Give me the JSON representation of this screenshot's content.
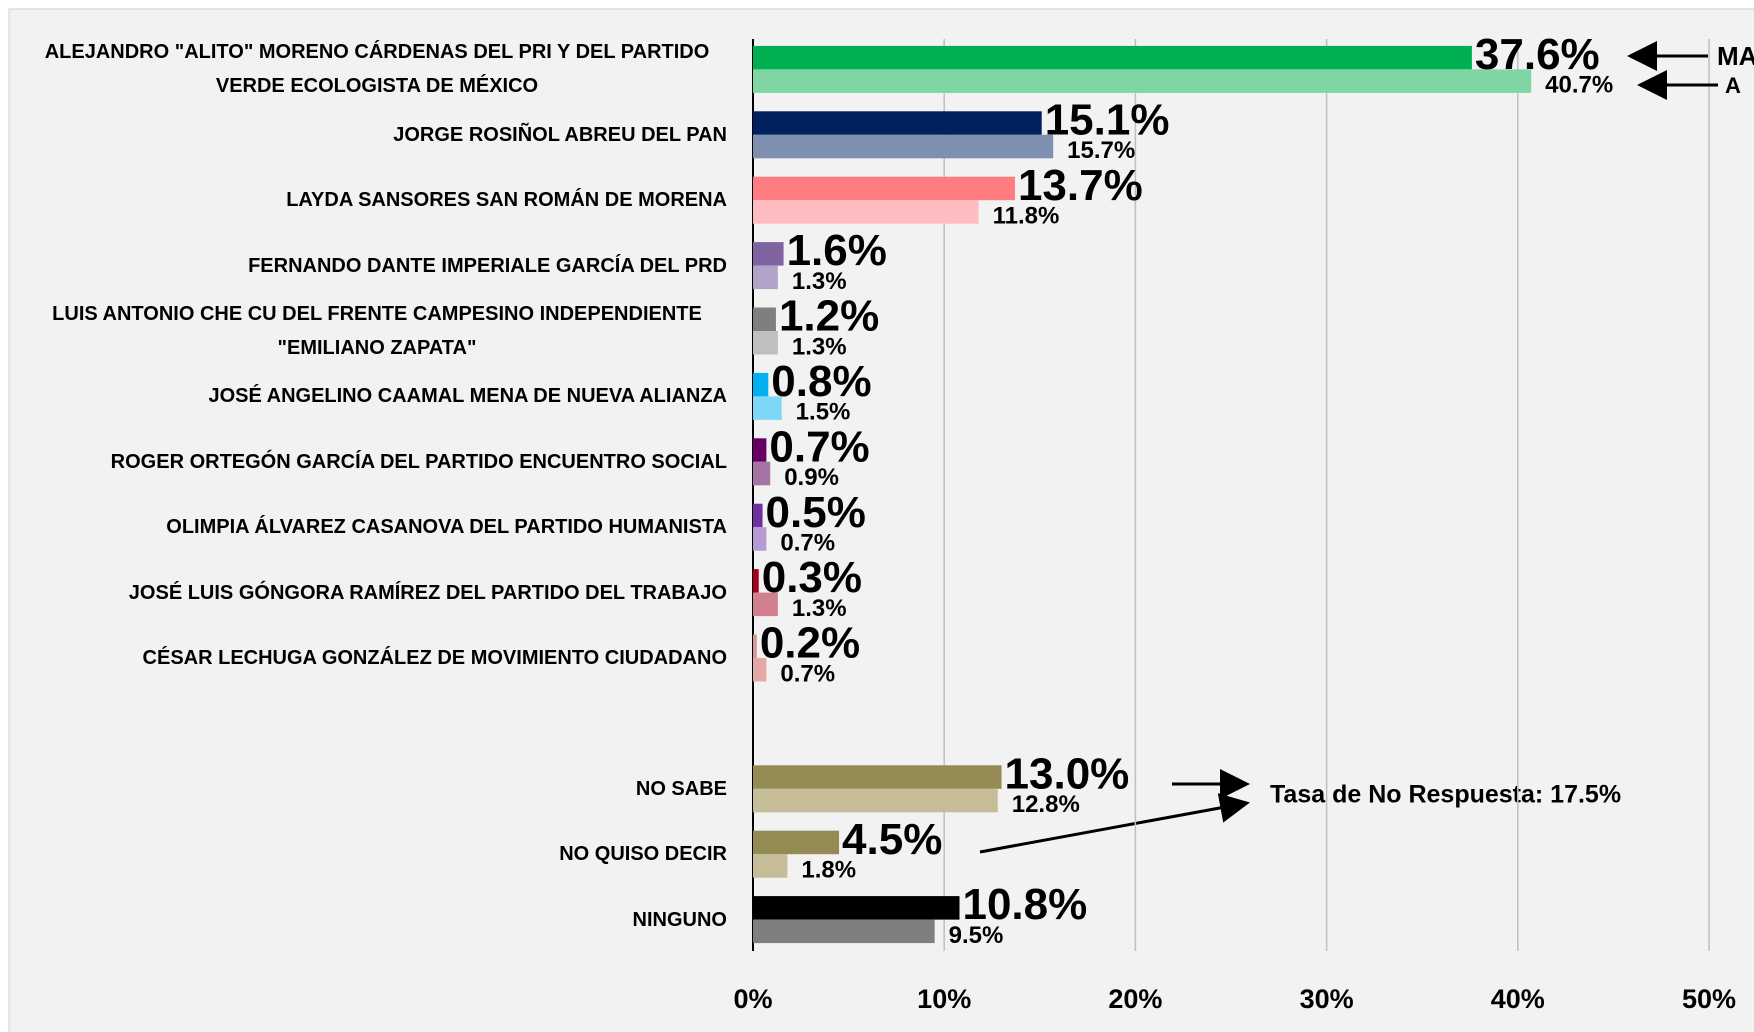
{
  "chart_data": {
    "type": "bar",
    "orientation": "horizontal",
    "categories": [
      "ALEJANDRO \"ALITO\" MORENO CÁRDENAS DEL PRI Y DEL PARTIDO VERDE ECOLOGISTA DE MÉXICO",
      "JORGE ROSIÑOL ABREU DEL PAN",
      "LAYDA SANSORES SAN ROMÁN DE MORENA",
      "FERNANDO DANTE IMPERIALE GARCÍA DEL PRD",
      "LUIS ANTONIO CHE CU DEL FRENTE CAMPESINO INDEPENDIENTE \"EMILIANO ZAPATA\"",
      "JOSÉ ANGELINO CAAMAL MENA DE NUEVA ALIANZA",
      "ROGER ORTEGÓN GARCÍA DEL PARTIDO ENCUENTRO SOCIAL",
      "OLIMPIA ÁLVAREZ CASANOVA DEL PARTIDO HUMANISTA",
      "JOSÉ LUIS GÓNGORA RAMÍREZ DEL PARTIDO DEL TRABAJO",
      "CÉSAR LECHUGA GONZÁLEZ DE MOVIMIENTO CIUDADANO",
      null,
      "NO SABE",
      "NO QUISO DECIR",
      "NINGUNO"
    ],
    "series": [
      {
        "name": "MA",
        "colors": [
          "#00b050",
          "#002060",
          "#ff7c80",
          "#8064a2",
          "#7f7f7f",
          "#00b0f0",
          "#660066",
          "#7030a0",
          "#a50021",
          "#d99694",
          null,
          "#948a54",
          "#948a54",
          "#000000"
        ],
        "values": [
          37.6,
          15.1,
          13.7,
          1.6,
          1.2,
          0.8,
          0.7,
          0.5,
          0.3,
          0.2,
          null,
          13,
          4.5,
          10.8
        ],
        "value_labels": [
          "37.6%",
          "15.1%",
          "13.7%",
          "1.6%",
          "1.2%",
          "0.8%",
          "0.7%",
          "0.5%",
          "0.3%",
          "0.2%",
          null,
          "13.0%",
          "4.5%",
          "10.8%"
        ]
      },
      {
        "name": "A",
        "colors": [
          "#7fd6a4",
          "#7f8fb0",
          "#ffbcc0",
          "#b3a2c7",
          "#bfbfbf",
          "#7fd7f8",
          "#a673a6",
          "#b59bd0",
          "#d27f90",
          "#e6a8a6",
          null,
          "#c4bd97",
          "#c4bd97",
          "#7f7f7f"
        ],
        "values": [
          40.7,
          15.7,
          11.8,
          1.3,
          1.3,
          1.5,
          0.9,
          0.7,
          1.3,
          0.7,
          null,
          12.8,
          1.8,
          9.5
        ],
        "value_labels": [
          "40.7%",
          "15.7%",
          "11.8%",
          "1.3%",
          "1.3%",
          "1.5%",
          "0.9%",
          "0.7%",
          "1.3%",
          "0.7%",
          null,
          "12.8%",
          "1.8%",
          "9.5%"
        ]
      }
    ],
    "xlim": [
      0,
      50
    ],
    "xticks": [
      {
        "value": 0,
        "label": "0%"
      },
      {
        "value": 10,
        "label": "10%"
      },
      {
        "value": 20,
        "label": "20%"
      },
      {
        "value": 30,
        "label": "30%"
      },
      {
        "value": 40,
        "label": "40%"
      },
      {
        "value": 50,
        "label": "50%"
      }
    ],
    "grid": true,
    "annotation": "Tasa de No Respuesta: 17.5%"
  }
}
